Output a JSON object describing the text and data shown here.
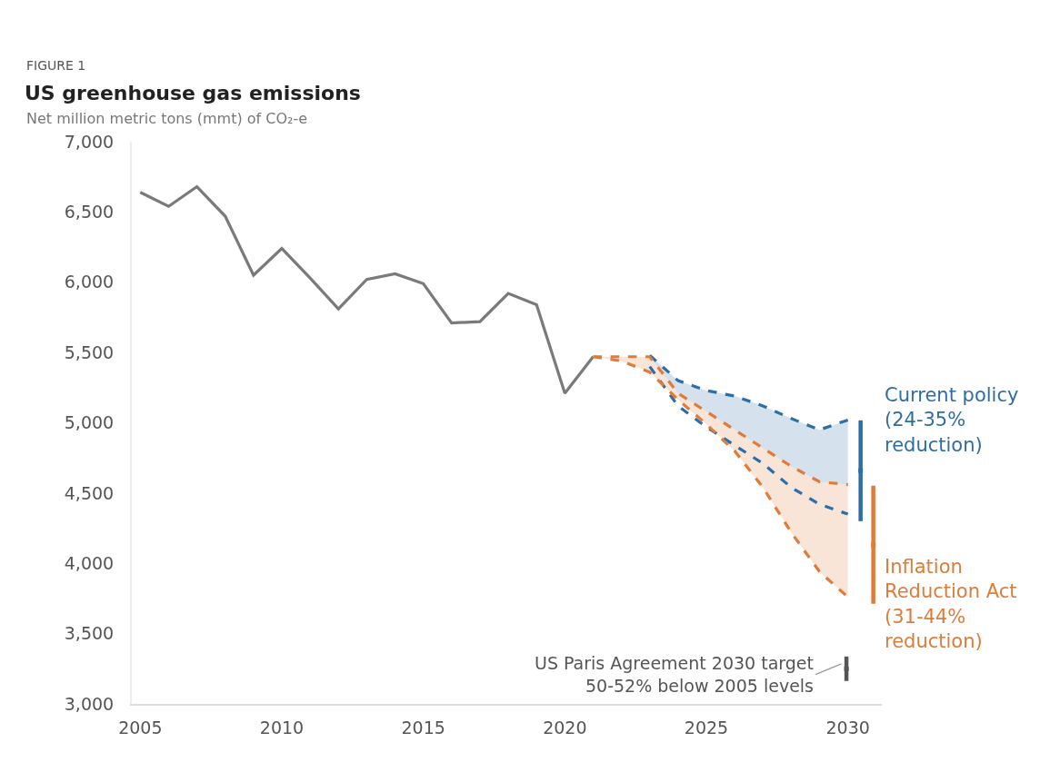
{
  "chart_data": {
    "type": "line",
    "title": "US greenhouse gas emissions",
    "subtitle": "Net million metric tons (mmt) of CO₂-e",
    "annotations": [
      "FIGURE 1",
      {
        "text": "Current policy\n(24-35%\nreduction)",
        "x": 2030.45,
        "y": 5017
      },
      {
        "text": "Inflation\nReduction Act\n(31-44%\nreduction)",
        "x": 2030.9,
        "y": 3712
      },
      {
        "text": "US Paris Agreement 2030 target\n50-52% below 2005 levels",
        "x": 2029.95,
        "y": 3300
      }
    ],
    "xlim": [
      2004.7,
      2031.2
    ],
    "xticks": [
      2005,
      2010,
      2015,
      2020,
      2025,
      2030
    ],
    "ylim": [
      3000,
      7000
    ],
    "yticks": [
      {
        "value": 3000,
        "label": "3,000"
      },
      {
        "value": 3500,
        "label": "3,500"
      },
      {
        "value": 4000,
        "label": "4,000"
      },
      {
        "value": 4500,
        "label": "4,500"
      },
      {
        "value": 5000,
        "label": "5,000"
      },
      {
        "value": 5500,
        "label": "5,500"
      },
      {
        "value": 6000,
        "label": "6,000"
      },
      {
        "value": 6500,
        "label": "6,500"
      },
      {
        "value": 7000,
        "label": "7,000"
      }
    ],
    "grid": false,
    "marker": "none",
    "series": [
      {
        "color": "#7a7a7a",
        "line_style": "solid",
        "x": [
          2005,
          2006,
          2007,
          2008,
          2009,
          2010,
          2011,
          2012,
          2013,
          2014,
          2015,
          2016,
          2017,
          2018,
          2019,
          2020,
          2021
        ],
        "values": [
          6640,
          6540,
          6680,
          6470,
          6050,
          6240,
          6030,
          5810,
          6020,
          6060,
          5990,
          5710,
          5720,
          5920,
          5840,
          5210,
          5470
        ]
      },
      {
        "color": "#2f6ea5",
        "line_style": "dashed",
        "x": [
          2023,
          2024,
          2025,
          2026,
          2027,
          2028,
          2029,
          2030
        ],
        "values": [
          5480,
          5300,
          5230,
          5190,
          5120,
          5030,
          4950,
          5020
        ],
        "lower": [
          5470,
          5210,
          5080,
          4950,
          4820,
          4690,
          4580,
          4560
        ],
        "upper": [
          5480,
          5300,
          5230,
          5190,
          5120,
          5030,
          4950,
          5020
        ]
      },
      {
        "color": "#2f6ea5",
        "line_style": "dashed",
        "x": [
          2023,
          2024,
          2025,
          2026,
          2027,
          2028,
          2029,
          2030
        ],
        "values": [
          5400,
          5120,
          4970,
          4840,
          4710,
          4540,
          4420,
          4350
        ]
      },
      {
        "color": "#e07c3a",
        "line_style": "dashed",
        "x": [
          2021,
          2022,
          2023,
          2024,
          2025,
          2026,
          2027,
          2028,
          2029,
          2030
        ],
        "values": [
          5470,
          5470,
          5470,
          5210,
          5080,
          4950,
          4820,
          4690,
          4580,
          4560
        ],
        "lower": [
          5470,
          5440,
          5360,
          5165,
          4990,
          4800,
          4540,
          4220,
          3940,
          3760
        ],
        "upper": [
          5470,
          5470,
          5470,
          5210,
          5080,
          4950,
          4820,
          4690,
          4580,
          4560
        ]
      },
      {
        "color": "#e07c3a",
        "line_style": "dashed",
        "x": [
          2021,
          2022,
          2023,
          2024,
          2025,
          2026,
          2027,
          2028,
          2029,
          2030
        ],
        "values": [
          5470,
          5440,
          5360,
          5165,
          4990,
          4800,
          4540,
          4220,
          3940,
          3760
        ]
      },
      {
        "type": "scatter",
        "marker": "square",
        "color": "#2f6ea5",
        "x": [
          2030.45
        ],
        "values": [
          4660
        ],
        "errors": [
          [
            4300,
            5017
          ]
        ]
      },
      {
        "type": "scatter",
        "marker": "square",
        "color": "#e07c3a",
        "x": [
          2030.9
        ],
        "values": [
          4130
        ],
        "errors": [
          [
            3712,
            4552
          ]
        ]
      },
      {
        "type": "scatter",
        "marker": "square",
        "color": "#555555",
        "x": [
          2029.95
        ],
        "values": [
          3250
        ],
        "errors": [
          [
            3163,
            3337
          ]
        ]
      }
    ]
  }
}
